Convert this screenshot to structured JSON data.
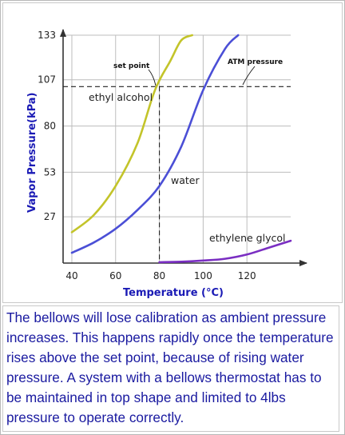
{
  "chart_data": {
    "type": "line",
    "xlabel": "Temperature (°C)",
    "ylabel": "Vapor Pressure(kPa)",
    "xlim": [
      36,
      140
    ],
    "ylim": [
      0,
      133
    ],
    "xticks": [
      40,
      60,
      80,
      100,
      120
    ],
    "yticks": [
      27,
      53,
      80,
      107,
      133
    ],
    "grid": true,
    "series": [
      {
        "name": "ethyl alcohol",
        "color": "#c3c42a",
        "x": [
          40,
          50,
          60,
          70,
          78,
          85,
          90,
          95
        ],
        "y": [
          18,
          28,
          45,
          70,
          101,
          118,
          130,
          133
        ]
      },
      {
        "name": "water",
        "color": "#4b4fd6",
        "x": [
          40,
          50,
          60,
          70,
          80,
          90,
          100,
          110,
          116
        ],
        "y": [
          6,
          12,
          20,
          31,
          45,
          68,
          101,
          125,
          133
        ]
      },
      {
        "name": "ethylene glycol",
        "color": "#7a2ec2",
        "x": [
          80,
          90,
          100,
          110,
          120,
          130,
          140
        ],
        "y": [
          0.5,
          0.8,
          1.5,
          2.5,
          5,
          9,
          13
        ]
      }
    ],
    "annotations": {
      "set_point": "set point",
      "atm_pressure": "ATM pressure",
      "hline_y": 103,
      "vline_x": 80
    }
  },
  "caption": "The bellows will lose calibration as ambient pressure increases. This happens rapidly once the temperature rises above the set point, because of rising water pressure. A system with a bellows thermostat has to be maintained in top shape and limited to 4lbs pressure to operate correctly."
}
